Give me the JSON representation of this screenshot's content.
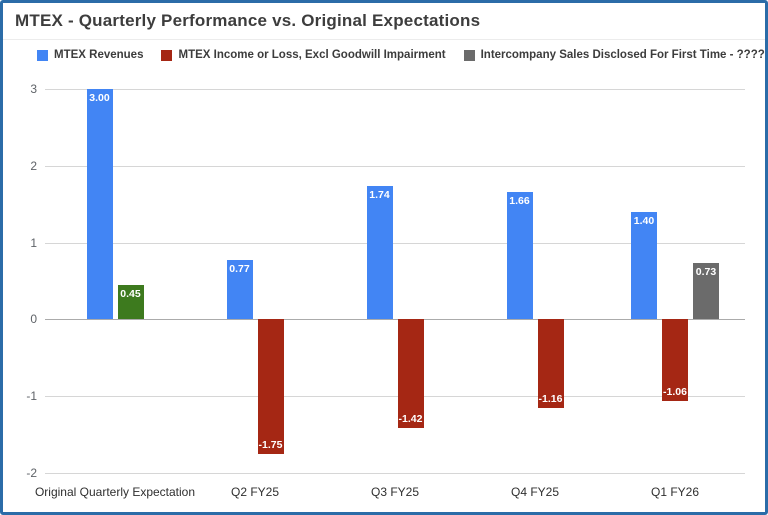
{
  "frame": {
    "border_color": "#2b6ca8"
  },
  "chart_data": {
    "type": "bar",
    "title": "MTEX - Quarterly Performance vs. Original Expectations",
    "categories": [
      "Original Quarterly Expectation",
      "Q2 FY25",
      "Q3 FY25",
      "Q4 FY25",
      "Q1 FY26"
    ],
    "series": [
      {
        "name": "MTEX Revenues",
        "color": "#4285f4",
        "values": [
          3.0,
          0.77,
          1.74,
          1.66,
          1.4
        ]
      },
      {
        "name": "MTEX Income or Loss, Excl Goodwill Impairment",
        "color": "#a52714",
        "values": [
          0.45,
          -1.75,
          -1.42,
          -1.16,
          -1.06
        ],
        "point_colors": {
          "0": "#3d7a1e"
        }
      },
      {
        "name": "Intercompany Sales Disclosed For First Time - ?????",
        "color": "#6b6b6b",
        "values": [
          null,
          null,
          null,
          null,
          0.73
        ]
      }
    ],
    "ylim": [
      -2,
      3
    ],
    "yticks": [
      3,
      2,
      1,
      0,
      -1,
      -2
    ],
    "grid": true,
    "legend_position": "top",
    "bar_labels": true,
    "bar_label_format": "2-decimals"
  }
}
